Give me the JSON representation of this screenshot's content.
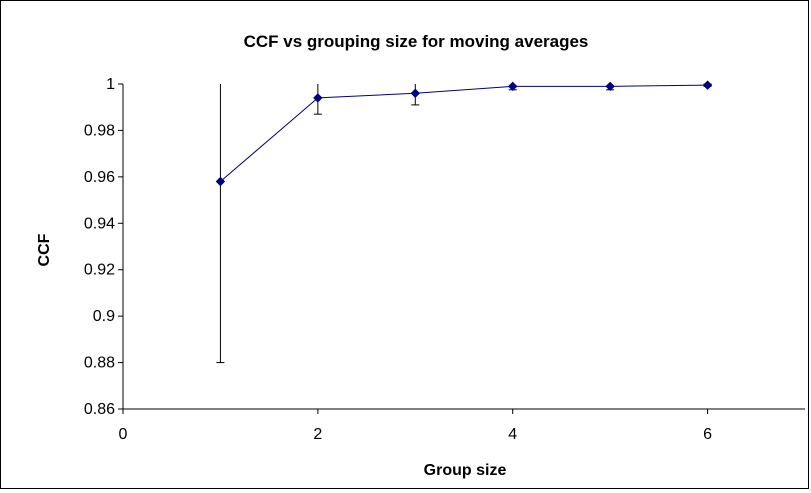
{
  "chart_data": {
    "type": "scatter",
    "title": "CCF vs grouping size for moving averages",
    "xlabel": "Group size",
    "ylabel": "CCF",
    "xlim": [
      0,
      7
    ],
    "ylim": [
      0.86,
      1.0
    ],
    "xticks": [
      0,
      2,
      4,
      6
    ],
    "xtick_labels": [
      "0",
      "2",
      "4",
      "6"
    ],
    "yticks": [
      0.86,
      0.88,
      0.9,
      0.92,
      0.94,
      0.96,
      0.98,
      1.0
    ],
    "ytick_labels": [
      "0.86",
      "0.88",
      "0.9",
      "0.92",
      "0.94",
      "0.96",
      "0.98",
      "1"
    ],
    "grid": false,
    "legend": "none",
    "series": [
      {
        "x": [
          1,
          2,
          3,
          4,
          5,
          6
        ],
        "y": [
          0.958,
          0.994,
          0.996,
          0.999,
          0.999,
          0.9995
        ],
        "error_low": [
          0.88,
          0.987,
          0.991,
          0.9975,
          0.9975,
          0.999
        ],
        "error_high": [
          1.036,
          1.0007,
          1.001,
          1.0005,
          1.0005,
          1.0
        ],
        "color": "#000080",
        "marker": "diamond",
        "line": true
      }
    ]
  }
}
